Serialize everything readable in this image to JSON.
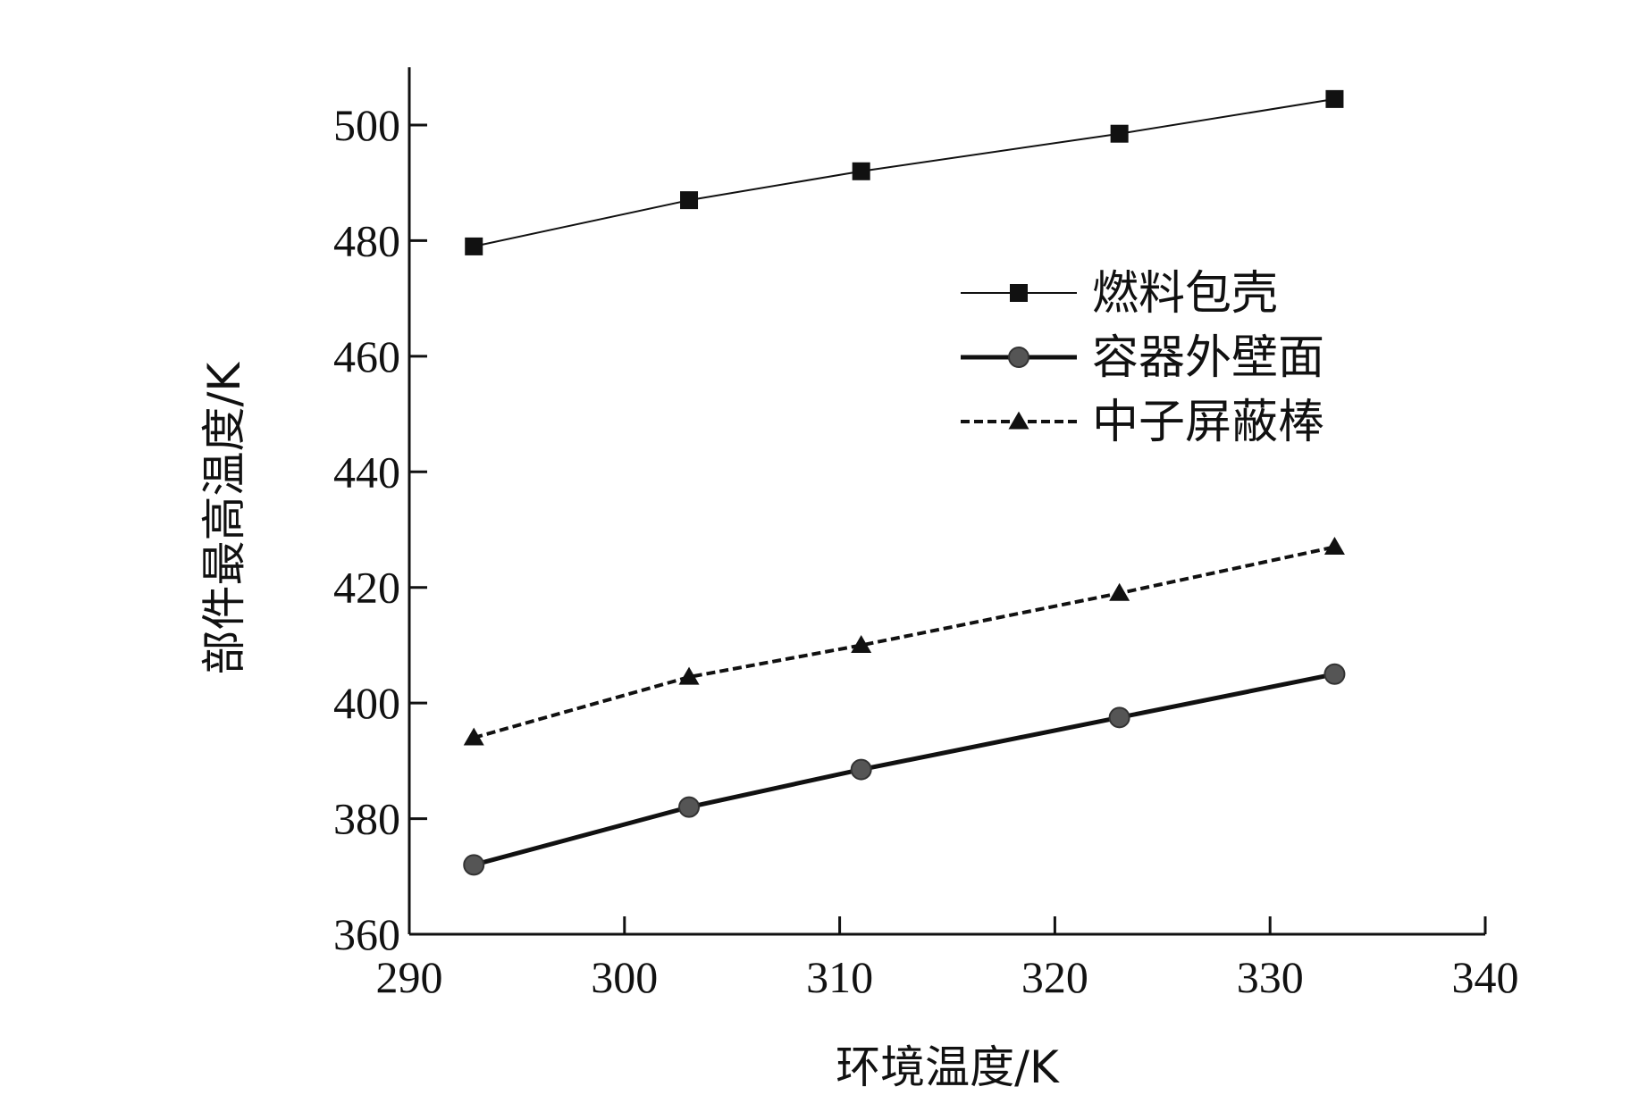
{
  "chart_data": {
    "type": "line",
    "xlabel": "环境温度/K",
    "ylabel": "部件最高温度/K",
    "xlim": [
      290,
      340
    ],
    "ylim": [
      360,
      510
    ],
    "xticks": [
      290,
      300,
      310,
      320,
      330,
      340
    ],
    "yticks": [
      360,
      380,
      400,
      420,
      440,
      460,
      480,
      500
    ],
    "grid": false,
    "legend_position": "upper-right",
    "series": [
      {
        "name": "燃料包壳",
        "marker": "square",
        "line": "solid-thin",
        "color": "#111111",
        "x": [
          293,
          303,
          311,
          323,
          333
        ],
        "y": [
          479,
          487,
          492,
          498.5,
          504.5
        ]
      },
      {
        "name": "容器外壁面",
        "marker": "circle",
        "line": "solid-thick",
        "color": "#111111",
        "x": [
          293,
          303,
          311,
          323,
          333
        ],
        "y": [
          372,
          382,
          388.5,
          397.5,
          405
        ]
      },
      {
        "name": "中子屏蔽棒",
        "marker": "triangle",
        "line": "dashed",
        "color": "#111111",
        "x": [
          293,
          303,
          311,
          323,
          333
        ],
        "y": [
          394,
          404.5,
          410,
          419,
          427
        ]
      }
    ]
  }
}
